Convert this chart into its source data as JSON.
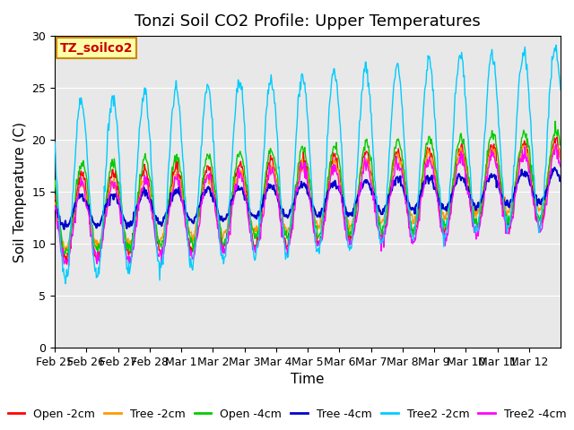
{
  "title": "Tonzi Soil CO2 Profile: Upper Temperatures",
  "xlabel": "Time",
  "ylabel": "Soil Temperature (C)",
  "ylim": [
    0,
    30
  ],
  "yticks": [
    0,
    5,
    10,
    15,
    20,
    25,
    30
  ],
  "date_labels": [
    "Feb 25",
    "Feb 26",
    "Feb 27",
    "Feb 28",
    "Mar 1",
    "Mar 2",
    "Mar 3",
    "Mar 4",
    "Mar 5",
    "Mar 6",
    "Mar 7",
    "Mar 8",
    "Mar 9",
    "Mar 10",
    "Mar 11",
    "Mar 12"
  ],
  "legend_entries": [
    "Open -2cm",
    "Tree -2cm",
    "Open -4cm",
    "Tree -4cm",
    "Tree2 -2cm",
    "Tree2 -4cm"
  ],
  "legend_colors": [
    "#ff0000",
    "#ff9900",
    "#00cc00",
    "#0000cc",
    "#00ccff",
    "#ff00ff"
  ],
  "annotation_text": "TZ_soilco2",
  "annotation_bg": "#ffffaa",
  "annotation_border": "#cc8800",
  "background_color": "#e8e8e8",
  "title_fontsize": 13,
  "axis_label_fontsize": 11,
  "tick_fontsize": 9,
  "legend_fontsize": 9,
  "n_days": 16,
  "points_per_day": 48
}
